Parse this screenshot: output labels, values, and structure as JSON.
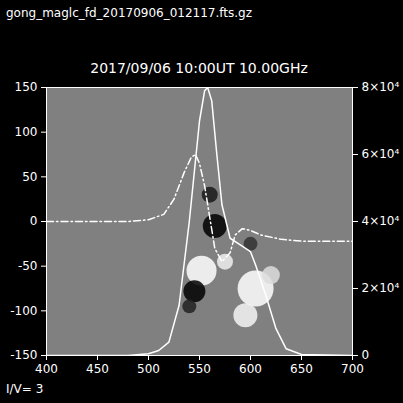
{
  "chart_data": {
    "type": "line",
    "title": "2017/09/06 10:00UT 10.00GHz",
    "annotations": [
      "gong_maglc_fd_20170906_012117.fts.gz",
      "I/V= 3"
    ],
    "xlim": [
      400,
      700
    ],
    "xticks": [
      400,
      450,
      500,
      550,
      600,
      650,
      700
    ],
    "ylim": [
      -150,
      150
    ],
    "yticks": [
      -150,
      -100,
      -50,
      0,
      50,
      100,
      150
    ],
    "y2lim": [
      0,
      80000
    ],
    "y2ticks": [
      0,
      {
        "value": 20000,
        "label": "2×10⁴"
      },
      {
        "value": 40000,
        "label": "4×10⁴"
      },
      {
        "value": 60000,
        "label": "6×10⁴"
      },
      {
        "value": 80000,
        "label": "8×10⁴"
      }
    ],
    "series": [
      {
        "color": "#ffffff",
        "line_style": "solid",
        "axis": "y2",
        "x": [
          400,
          480,
          500,
          510,
          520,
          530,
          540,
          545,
          550,
          555,
          558,
          562,
          567,
          572,
          580,
          590,
          600,
          605,
          615,
          625,
          635,
          650,
          700
        ],
        "values": [
          0,
          0,
          500,
          1500,
          4000,
          15000,
          40000,
          55000,
          70000,
          79000,
          80000,
          76000,
          60000,
          45000,
          35000,
          33000,
          31000,
          27000,
          18000,
          8000,
          2000,
          300,
          0
        ]
      },
      {
        "color": "#ffffff",
        "line_style": "dashdot",
        "axis": "y",
        "x": [
          400,
          480,
          500,
          515,
          525,
          535,
          542,
          546,
          550,
          555,
          560,
          565,
          572,
          580,
          585,
          592,
          600,
          610,
          630,
          650,
          700
        ],
        "values": [
          0,
          0,
          2,
          8,
          25,
          55,
          72,
          75,
          65,
          40,
          5,
          -30,
          -45,
          -35,
          -15,
          -8,
          -10,
          -15,
          -20,
          -22,
          -22
        ]
      }
    ],
    "patches": {
      "x": [
        565,
        560,
        545,
        540,
        600,
        552,
        575,
        605,
        595,
        620
      ],
      "y": [
        -5,
        30,
        -78,
        -95,
        -25,
        -55,
        -45,
        -75,
        -105,
        -60
      ],
      "size": [
        12,
        8,
        11,
        7,
        7,
        15,
        8,
        18,
        12,
        9
      ],
      "colors": [
        "#000000",
        "#1a1a1a",
        "#000000",
        "#222222",
        "#333333",
        "#ffffff",
        "#eeeeee",
        "#ffffff",
        "#f4f4f4",
        "#dddddd"
      ]
    }
  }
}
